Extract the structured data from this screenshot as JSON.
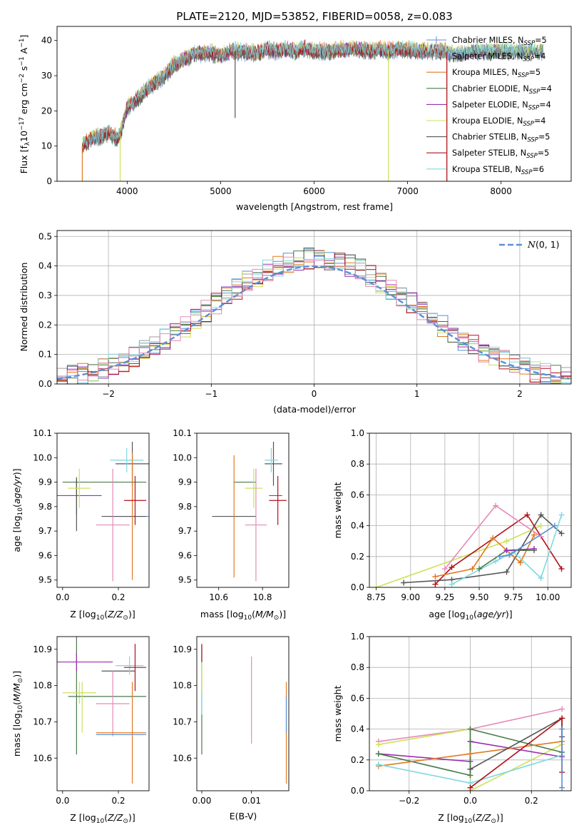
{
  "figure": {
    "title": "PLATE=2120, MJD=53852, FIBERID=0058, z=0.083"
  },
  "series_colors": {
    "chabrier_miles": "#5b8fd6",
    "salpeter_miles": "#9e9e9e",
    "kroupa_miles": "#e07a1f",
    "chabrier_elodie": "#4a7a4a",
    "salpeter_elodie": "#9a2fb0",
    "kroupa_elodie": "#cfe05a",
    "chabrier_stelib": "#555555",
    "salpeter_stelib": "#b0121b",
    "kroupa_stelib": "#7fd8e0",
    "pink": "#e58ab6"
  },
  "chart_data": [
    {
      "id": "spectrum",
      "type": "line",
      "title": "PLATE=2120, MJD=53852, FIBERID=0058, z=0.083",
      "xlabel": "wavelength [Angstrom, rest frame]",
      "ylabel": "Flux [fλ10⁻¹⁷ erg cm⁻² s⁻¹ A⁻¹]",
      "xlim": [
        3250,
        8750
      ],
      "ylim": [
        0,
        44
      ],
      "xticks": [
        "4000",
        "5000",
        "6000",
        "7000",
        "8000"
      ],
      "yticks": [
        "0",
        "10",
        "20",
        "30",
        "40"
      ],
      "legend": [
        {
          "label": "Chabrier MILES, N",
          "sub": "SSP",
          "tail": "=5",
          "color_key": "chabrier_miles"
        },
        {
          "label": "Salpeter MILES, N",
          "sub": "SSP",
          "tail": "=4",
          "color_key": "salpeter_miles"
        },
        {
          "label": "Kroupa MILES, N",
          "sub": "SSP",
          "tail": "=5",
          "color_key": "kroupa_miles"
        },
        {
          "label": "Chabrier ELODIE, N",
          "sub": "SSP",
          "tail": "=4",
          "color_key": "chabrier_elodie"
        },
        {
          "label": "Salpeter ELODIE, N",
          "sub": "SSP",
          "tail": "=4",
          "color_key": "salpeter_elodie"
        },
        {
          "label": "Kroupa ELODIE, N",
          "sub": "SSP",
          "tail": "=4",
          "color_key": "kroupa_elodie"
        },
        {
          "label": "Chabrier STELIB, N",
          "sub": "SSP",
          "tail": "=5",
          "color_key": "chabrier_stelib"
        },
        {
          "label": "Salpeter STELIB, N",
          "sub": "SSP",
          "tail": "=5",
          "color_key": "salpeter_stelib"
        },
        {
          "label": "Kroupa STELIB, N",
          "sub": "SSP",
          "tail": "=6",
          "color_key": "kroupa_stelib"
        }
      ],
      "legend_placement": "right",
      "envelope": {
        "x": [
          3520,
          3600,
          3700,
          3800,
          3900,
          3930,
          4000,
          4100,
          4200,
          4300,
          4400,
          4500,
          4600,
          4700,
          4800,
          4900,
          5000,
          5100,
          5200,
          5300,
          5400,
          5500,
          5600,
          5700,
          5800,
          5900,
          6000,
          6100,
          6200,
          6300,
          6400,
          6500,
          6600,
          6700,
          6800,
          6900,
          7000,
          7100,
          7200,
          7300,
          7400,
          7500,
          7600,
          7700,
          7800,
          7900,
          8000,
          8100,
          8200,
          8300,
          8400
        ],
        "y": [
          10,
          12,
          12.5,
          14,
          12,
          14,
          21,
          23,
          26,
          28,
          30,
          33,
          34.5,
          36,
          36.5,
          36.5,
          35.5,
          37,
          37,
          36.5,
          36.5,
          37.5,
          37,
          37.5,
          37,
          38,
          37,
          37,
          37,
          37.5,
          37.5,
          37.5,
          37,
          37.5,
          37,
          37.5,
          37.5,
          37,
          37,
          37,
          37,
          36,
          36.5,
          37,
          37,
          37,
          37,
          37,
          37,
          37,
          37
        ]
      },
      "dips": [
        {
          "x": 3520,
          "to": 0,
          "color_key": "kroupa_miles"
        },
        {
          "x": 3925,
          "to": 0,
          "color_key": "kroupa_elodie"
        },
        {
          "x": 6795,
          "to": 0,
          "color_key": "kroupa_elodie"
        },
        {
          "x": 7420,
          "to": 0,
          "color_key": "kroupa_miles"
        },
        {
          "x": 7420,
          "to": 0,
          "color_key": "salpeter_stelib"
        },
        {
          "x": 5155,
          "to": 18,
          "color_key": "chabrier_stelib"
        }
      ]
    },
    {
      "id": "residuals",
      "type": "histogram",
      "xlabel": "(data-model)/error",
      "ylabel": "Normed distribution",
      "xlim": [
        -2.5,
        2.5
      ],
      "ylim": [
        0,
        0.52
      ],
      "xticks": [
        "−2",
        "−1",
        "0",
        "1",
        "2"
      ],
      "yticks": [
        "0.0",
        "0.1",
        "0.2",
        "0.3",
        "0.4",
        "0.5"
      ],
      "bin_width": 0.1,
      "legend": [
        {
          "label": "N(0,1)",
          "color": "#5b8fd6"
        }
      ],
      "legend_placement": "top-right",
      "grid": true
    },
    {
      "id": "age_vs_Z",
      "type": "errorbar",
      "xlabel": "Z [log10(Z/Z⊙)]",
      "ylabel": "age  [log10(age/yr)]",
      "xlim": [
        -0.02,
        0.31
      ],
      "ylim": [
        9.47,
        10.1
      ],
      "xticks": [
        "0.0",
        "0.2"
      ],
      "yticks": [
        "9.5",
        "9.6",
        "9.7",
        "9.8",
        "9.9",
        "10.0",
        "10.1"
      ],
      "points": [
        {
          "x": 0.15,
          "xerr": 0.15,
          "y": 9.9,
          "yerr": 0.0,
          "color_key": "chabrier_elodie"
        },
        {
          "x": 0.05,
          "xerr": 0.0,
          "y": 9.84,
          "yerr": 0.07,
          "color_key": "chabrier_elodie"
        },
        {
          "x": 0.05,
          "xerr": 0.0,
          "y": 9.81,
          "yerr": 0.11,
          "color_key": "chabrier_stelib"
        },
        {
          "x": 0.0,
          "xerr": 0.14,
          "y": 9.845,
          "yerr": 0.0,
          "color_key": "salpeter_elodie"
        },
        {
          "x": 0.06,
          "xerr": 0.04,
          "y": 9.875,
          "yerr": 0.08,
          "color_key": "kroupa_elodie"
        },
        {
          "x": 0.25,
          "xerr": 0.06,
          "y": 9.975,
          "yerr": 0.09,
          "color_key": "chabrier_stelib"
        },
        {
          "x": 0.23,
          "xerr": 0.06,
          "y": 9.99,
          "yerr": 0.05,
          "color_key": "kroupa_stelib"
        },
        {
          "x": 0.24,
          "xerr": 0.07,
          "y": 9.76,
          "yerr": 0.0,
          "color_key": "chabrier_miles"
        },
        {
          "x": 0.22,
          "xerr": 0.08,
          "y": 9.76,
          "yerr": 0.0,
          "color_key": "chabrier_stelib"
        },
        {
          "x": 0.18,
          "xerr": 0.06,
          "y": 9.725,
          "yerr": 0.23,
          "color_key": "pink"
        },
        {
          "x": 0.25,
          "xerr": 0.0,
          "y": 9.76,
          "yerr": 0.26,
          "color_key": "kroupa_miles"
        },
        {
          "x": 0.26,
          "xerr": 0.04,
          "y": 9.825,
          "yerr": 0.1,
          "color_key": "salpeter_stelib"
        }
      ]
    },
    {
      "id": "age_vs_mass",
      "type": "errorbar",
      "xlabel": "mass [log10(M/M⊙)]",
      "ylabel": "",
      "xlim": [
        10.5,
        10.92
      ],
      "ylim": [
        9.47,
        10.1
      ],
      "xticks": [
        "10.6",
        "10.8"
      ],
      "yticks": [
        "9.5",
        "9.6",
        "9.7",
        "9.8",
        "9.9",
        "10.0",
        "10.1"
      ],
      "points": [
        {
          "x": 10.72,
          "xerr": 0.05,
          "y": 9.9,
          "yerr": 0.0,
          "color_key": "chabrier_elodie"
        },
        {
          "x": 10.76,
          "xerr": 0.04,
          "y": 9.875,
          "yerr": 0.08,
          "color_key": "kroupa_elodie"
        },
        {
          "x": 10.85,
          "xerr": 0.04,
          "y": 9.975,
          "yerr": 0.09,
          "color_key": "chabrier_stelib"
        },
        {
          "x": 10.84,
          "xerr": 0.03,
          "y": 9.99,
          "yerr": 0.05,
          "color_key": "kroupa_stelib"
        },
        {
          "x": 10.86,
          "xerr": 0.03,
          "y": 9.845,
          "yerr": 0.0,
          "color_key": "salpeter_elodie"
        },
        {
          "x": 10.87,
          "xerr": 0.04,
          "y": 9.825,
          "yerr": 0.1,
          "color_key": "salpeter_stelib"
        },
        {
          "x": 10.67,
          "xerr": 0.1,
          "y": 9.76,
          "yerr": 0.0,
          "color_key": "chabrier_stelib"
        },
        {
          "x": 10.67,
          "xerr": 0.0,
          "y": 9.76,
          "yerr": 0.25,
          "color_key": "kroupa_miles"
        },
        {
          "x": 10.77,
          "xerr": 0.05,
          "y": 9.725,
          "yerr": 0.23,
          "color_key": "pink"
        }
      ]
    },
    {
      "id": "mass_weight_vs_age",
      "type": "line",
      "xlabel": "age  [log10(age/yr)]",
      "ylabel": "mass weight",
      "xlim": [
        8.7,
        10.17
      ],
      "ylim": [
        0,
        1
      ],
      "xticks": [
        "8.75",
        "9.00",
        "9.25",
        "9.50",
        "9.75",
        "10.00"
      ],
      "yticks": [
        "0.0",
        "0.2",
        "0.4",
        "0.6",
        "0.8",
        "1.0"
      ],
      "grid": true,
      "series": [
        {
          "color_key": "kroupa_elodie",
          "x": [
            8.75,
            9.7,
            9.95
          ],
          "y": [
            0.0,
            0.3,
            0.4
          ]
        },
        {
          "color_key": "chabrier_stelib",
          "x": [
            8.95,
            9.3,
            9.7,
            9.95,
            10.1
          ],
          "y": [
            0.03,
            0.05,
            0.1,
            0.47,
            0.35
          ]
        },
        {
          "color_key": "salpeter_stelib",
          "x": [
            9.18,
            9.3,
            9.85,
            10.1
          ],
          "y": [
            0.02,
            0.13,
            0.47,
            0.12
          ]
        },
        {
          "color_key": "kroupa_miles",
          "x": [
            9.18,
            9.45,
            9.6,
            9.8,
            9.9
          ],
          "y": [
            0.07,
            0.12,
            0.32,
            0.16,
            0.34
          ]
        },
        {
          "color_key": "pink",
          "x": [
            9.25,
            9.62,
            9.95
          ],
          "y": [
            0.12,
            0.53,
            0.33
          ]
        },
        {
          "color_key": "kroupa_stelib",
          "x": [
            9.3,
            9.62,
            9.75,
            9.95,
            10.1
          ],
          "y": [
            0.02,
            0.17,
            0.23,
            0.06,
            0.47
          ]
        },
        {
          "color_key": "chabrier_elodie",
          "x": [
            9.5,
            9.7,
            9.9
          ],
          "y": [
            0.12,
            0.24,
            0.24
          ]
        },
        {
          "color_key": "salpeter_elodie",
          "x": [
            9.7,
            9.9
          ],
          "y": [
            0.24,
            0.25
          ]
        },
        {
          "color_key": "chabrier_miles",
          "x": [
            9.65,
            9.72,
            10.05
          ],
          "y": [
            0.2,
            0.21,
            0.4
          ]
        }
      ]
    },
    {
      "id": "mass_vs_Z",
      "type": "errorbar",
      "xlabel": "Z [log10(Z/Z⊙)]",
      "ylabel": "mass [log10(M/M⊙)]",
      "xlim": [
        -0.02,
        0.31
      ],
      "ylim": [
        10.51,
        10.935
      ],
      "xticks": [
        "0.0",
        "0.2"
      ],
      "yticks": [
        "10.6",
        "10.7",
        "10.8",
        "10.9"
      ],
      "points": [
        {
          "x": 0.05,
          "xerr": 0.0,
          "y": 10.775,
          "yerr": 0.165,
          "color_key": "chabrier_elodie"
        },
        {
          "x": 0.04,
          "xerr": 0.14,
          "y": 10.865,
          "yerr": 0.0,
          "color_key": "salpeter_elodie"
        },
        {
          "x": 0.05,
          "xerr": 0.0,
          "y": 10.865,
          "yerr": 0.025,
          "color_key": "salpeter_elodie"
        },
        {
          "x": 0.06,
          "xerr": 0.06,
          "y": 10.78,
          "yerr": 0.03,
          "color_key": "kroupa_elodie"
        },
        {
          "x": 0.16,
          "xerr": 0.14,
          "y": 10.77,
          "yerr": 0.0,
          "color_key": "chabrier_elodie"
        },
        {
          "x": 0.07,
          "xerr": 0.0,
          "y": 10.74,
          "yerr": 0.07,
          "color_key": "kroupa_elodie"
        },
        {
          "x": 0.2,
          "xerr": 0.06,
          "y": 10.84,
          "yerr": 0.0,
          "color_key": "chabrier_stelib"
        },
        {
          "x": 0.24,
          "xerr": 0.05,
          "y": 10.855,
          "yerr": 0.025,
          "color_key": "kroupa_stelib"
        },
        {
          "x": 0.26,
          "xerr": 0.04,
          "y": 10.85,
          "yerr": 0.065,
          "color_key": "salpeter_stelib"
        },
        {
          "x": 0.18,
          "xerr": 0.06,
          "y": 10.75,
          "yerr": 0.09,
          "color_key": "pink"
        },
        {
          "x": 0.21,
          "xerr": 0.09,
          "y": 10.665,
          "yerr": 0.0,
          "color_key": "chabrier_miles"
        },
        {
          "x": 0.25,
          "xerr": 0.0,
          "y": 10.67,
          "yerr": 0.14,
          "color_key": "kroupa_miles"
        },
        {
          "x": 0.21,
          "xerr": 0.09,
          "y": 10.67,
          "yerr": 0.0,
          "color_key": "kroupa_miles"
        }
      ]
    },
    {
      "id": "mass_vs_ebv",
      "type": "errorbar",
      "xlabel": "E(B-V)",
      "ylabel": "",
      "xlim": [
        -0.001,
        0.0175
      ],
      "ylim": [
        10.51,
        10.935
      ],
      "xticks": [
        "0.00",
        "0.01"
      ],
      "yticks": [
        "10.6",
        "10.7",
        "10.8",
        "10.9"
      ],
      "points": [
        {
          "x": 0.0,
          "y": 10.76,
          "yerr": 0.15,
          "color_key": "chabrier_elodie"
        },
        {
          "x": 0.0,
          "y": 10.8,
          "yerr": 0.08,
          "color_key": "kroupa_stelib"
        },
        {
          "x": 0.0,
          "y": 10.89,
          "yerr": 0.025,
          "color_key": "salpeter_stelib"
        },
        {
          "x": 0.0,
          "y": 10.82,
          "yerr": 0.04,
          "color_key": "kroupa_elodie"
        },
        {
          "x": 0.01,
          "y": 10.76,
          "yerr": 0.12,
          "color_key": "pink"
        },
        {
          "x": 0.017,
          "y": 10.67,
          "yerr": 0.14,
          "color_key": "kroupa_miles"
        },
        {
          "x": 0.017,
          "y": 10.72,
          "yerr": 0.05,
          "color_key": "chabrier_miles"
        }
      ]
    },
    {
      "id": "mass_weight_vs_Z",
      "type": "line",
      "xlabel": "Z [log10(Z/Z⊙)]",
      "ylabel": "mass weight",
      "xlim": [
        -0.33,
        0.33
      ],
      "ylim": [
        0,
        1
      ],
      "xticks": [
        "−0.2",
        "0.0",
        "0.2"
      ],
      "yticks": [
        "0.0",
        "0.2",
        "0.4",
        "0.6",
        "0.8",
        "1.0"
      ],
      "grid": true,
      "series": [
        {
          "color_key": "pink",
          "x": [
            -0.3,
            0.0,
            0.3
          ],
          "y": [
            0.32,
            0.4,
            0.53
          ]
        },
        {
          "color_key": "kroupa_elodie",
          "x": [
            -0.3,
            0.0,
            0.0,
            0.3
          ],
          "y": [
            0.3,
            0.4,
            0.0,
            0.3
          ]
        },
        {
          "color_key": "salpeter_elodie",
          "x": [
            -0.3,
            0.0,
            0.0,
            0.3
          ],
          "y": [
            0.24,
            0.19,
            0.32,
            0.22
          ]
        },
        {
          "color_key": "chabrier_elodie",
          "x": [
            -0.3,
            0.0,
            0.0,
            0.3
          ],
          "y": [
            0.24,
            0.1,
            0.4,
            0.25
          ]
        },
        {
          "color_key": "kroupa_miles",
          "x": [
            -0.3,
            0.0,
            0.3
          ],
          "y": [
            0.16,
            0.24,
            0.32
          ]
        },
        {
          "color_key": "kroupa_stelib",
          "x": [
            -0.3,
            0.0,
            0.3,
            0.3
          ],
          "y": [
            0.17,
            0.05,
            0.23,
            0.47
          ]
        },
        {
          "color_key": "chabrier_stelib",
          "x": [
            0.0,
            0.3,
            0.3
          ],
          "y": [
            0.14,
            0.47,
            0.35
          ]
        },
        {
          "color_key": "salpeter_stelib",
          "x": [
            0.0,
            0.3,
            0.3
          ],
          "y": [
            0.02,
            0.47,
            0.12
          ]
        },
        {
          "color_key": "chabrier_miles",
          "x": [
            0.3,
            0.3
          ],
          "y": [
            0.02,
            0.4
          ]
        }
      ]
    }
  ]
}
